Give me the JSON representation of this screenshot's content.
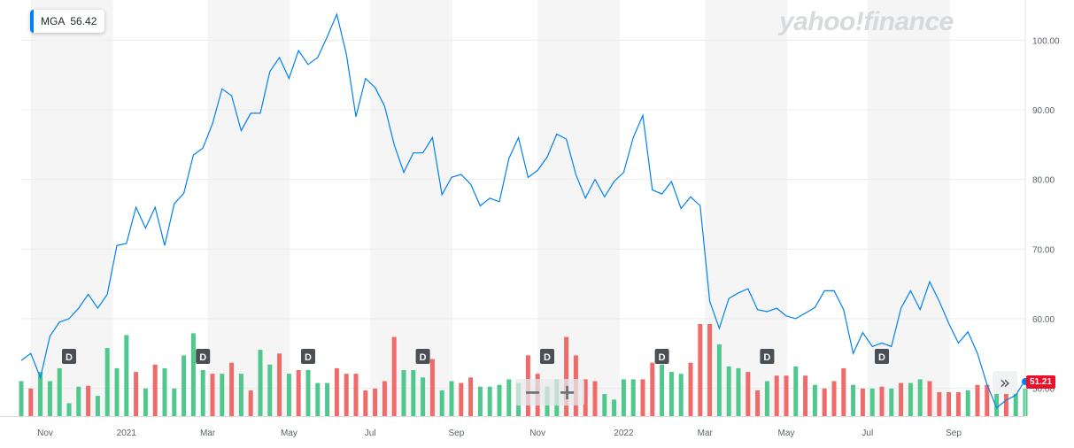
{
  "ticker": {
    "symbol": "MGA",
    "value": "56.42"
  },
  "watermark": "yahoo!finance",
  "last_price_flag": "51.21",
  "controls": {
    "zoom_out": "−",
    "zoom_in": "+",
    "forward": "»"
  },
  "colors": {
    "line": "#0081f2",
    "up": "#50c88d",
    "down": "#f06a6a",
    "flag": "#eb0f29",
    "band": "#f5f5f5"
  },
  "chart_data": {
    "type": "line",
    "ylim": [
      46,
      105
    ],
    "y_ticks": [
      "100.00",
      "90.00",
      "80.00",
      "70.00",
      "60.00",
      "50.00"
    ],
    "x_ticks": [
      {
        "label": "Nov",
        "week": 2.5
      },
      {
        "label": "2021",
        "week": 11
      },
      {
        "label": "Mar",
        "week": 19.5
      },
      {
        "label": "May",
        "week": 28
      },
      {
        "label": "Jul",
        "week": 36.5
      },
      {
        "label": "Sep",
        "week": 45.5
      },
      {
        "label": "Nov",
        "week": 54
      },
      {
        "label": "2022",
        "week": 63
      },
      {
        "label": "Mar",
        "week": 71.5
      },
      {
        "label": "May",
        "week": 80
      },
      {
        "label": "Jul",
        "week": 88.5
      },
      {
        "label": "Sep",
        "week": 97.5
      }
    ],
    "dividend_marker_label": "D",
    "dividend_weeks": [
      5,
      19,
      30,
      42,
      55,
      67,
      78,
      90
    ],
    "price": [
      54,
      55,
      51.5,
      57.5,
      59.5,
      60,
      61.5,
      63.5,
      61.5,
      63.5,
      70.5,
      70.8,
      76,
      73,
      76,
      70.5,
      76.5,
      78,
      83.5,
      84.5,
      88,
      93,
      92,
      87,
      89.5,
      89.5,
      95.5,
      97.5,
      94.5,
      98.5,
      96.5,
      97.5,
      100.5,
      103.7,
      98,
      89,
      94.5,
      93.2,
      90.5,
      85,
      81,
      83.8,
      83.8,
      86,
      77.8,
      80.3,
      80.7,
      79.3,
      76.2,
      77.3,
      76.8,
      83,
      86,
      80.3,
      81.3,
      83.2,
      86.5,
      85.8,
      80.7,
      77.3,
      80,
      77.5,
      79.7,
      81,
      86,
      89.2,
      78.5,
      77.9,
      79.7,
      75.8,
      77.5,
      76.2,
      62.5,
      58.6,
      62.9,
      63.7,
      64.3,
      61.3,
      61,
      61.5,
      60.4,
      60,
      60.8,
      61.6,
      64,
      64,
      61.3,
      55,
      58,
      56,
      56.5,
      56,
      61.5,
      64,
      61.3,
      65.3,
      62.5,
      59.3,
      56.5,
      58.1,
      55,
      50.5,
      47.2,
      48.3,
      49,
      51.2
    ],
    "volume": [
      {
        "h": 0.38,
        "up": true
      },
      {
        "h": 0.3,
        "up": false
      },
      {
        "h": 0.48,
        "up": true
      },
      {
        "h": 0.38,
        "up": true
      },
      {
        "h": 0.52,
        "up": true
      },
      {
        "h": 0.14,
        "up": true
      },
      {
        "h": 0.32,
        "up": true
      },
      {
        "h": 0.33,
        "up": false
      },
      {
        "h": 0.22,
        "up": true
      },
      {
        "h": 0.74,
        "up": true
      },
      {
        "h": 0.52,
        "up": true
      },
      {
        "h": 0.88,
        "up": true
      },
      {
        "h": 0.48,
        "up": false
      },
      {
        "h": 0.3,
        "up": true
      },
      {
        "h": 0.56,
        "up": false
      },
      {
        "h": 0.52,
        "up": true
      },
      {
        "h": 0.3,
        "up": true
      },
      {
        "h": 0.66,
        "up": true
      },
      {
        "h": 0.9,
        "up": true
      },
      {
        "h": 0.5,
        "up": true
      },
      {
        "h": 0.46,
        "up": false
      },
      {
        "h": 0.46,
        "up": true
      },
      {
        "h": 0.58,
        "up": false
      },
      {
        "h": 0.46,
        "up": true
      },
      {
        "h": 0.28,
        "up": false
      },
      {
        "h": 0.72,
        "up": true
      },
      {
        "h": 0.56,
        "up": true
      },
      {
        "h": 0.68,
        "up": false
      },
      {
        "h": 0.46,
        "up": true
      },
      {
        "h": 0.5,
        "up": false
      },
      {
        "h": 0.5,
        "up": true
      },
      {
        "h": 0.36,
        "up": true
      },
      {
        "h": 0.36,
        "up": true
      },
      {
        "h": 0.52,
        "up": false
      },
      {
        "h": 0.46,
        "up": false
      },
      {
        "h": 0.46,
        "up": false
      },
      {
        "h": 0.28,
        "up": false
      },
      {
        "h": 0.3,
        "up": false
      },
      {
        "h": 0.38,
        "up": false
      },
      {
        "h": 0.86,
        "up": false
      },
      {
        "h": 0.5,
        "up": true
      },
      {
        "h": 0.5,
        "up": true
      },
      {
        "h": 0.42,
        "up": true
      },
      {
        "h": 0.62,
        "up": false
      },
      {
        "h": 0.28,
        "up": true
      },
      {
        "h": 0.38,
        "up": true
      },
      {
        "h": 0.36,
        "up": false
      },
      {
        "h": 0.42,
        "up": false
      },
      {
        "h": 0.32,
        "up": true
      },
      {
        "h": 0.32,
        "up": true
      },
      {
        "h": 0.34,
        "up": true
      },
      {
        "h": 0.4,
        "up": true
      },
      {
        "h": 0.36,
        "up": true
      },
      {
        "h": 0.66,
        "up": false
      },
      {
        "h": 0.46,
        "up": false
      },
      {
        "h": 0.32,
        "up": true
      },
      {
        "h": 0.4,
        "up": true
      },
      {
        "h": 0.86,
        "up": false
      },
      {
        "h": 0.66,
        "up": false
      },
      {
        "h": 0.4,
        "up": false
      },
      {
        "h": 0.38,
        "up": false
      },
      {
        "h": 0.24,
        "up": true
      },
      {
        "h": 0.18,
        "up": true
      },
      {
        "h": 0.4,
        "up": true
      },
      {
        "h": 0.4,
        "up": true
      },
      {
        "h": 0.4,
        "up": false
      },
      {
        "h": 0.58,
        "up": false
      },
      {
        "h": 0.56,
        "up": true
      },
      {
        "h": 0.48,
        "up": true
      },
      {
        "h": 0.46,
        "up": true
      },
      {
        "h": 0.58,
        "up": false
      },
      {
        "h": 1.0,
        "up": false
      },
      {
        "h": 1.0,
        "up": false
      },
      {
        "h": 0.78,
        "up": true
      },
      {
        "h": 0.54,
        "up": true
      },
      {
        "h": 0.52,
        "up": true
      },
      {
        "h": 0.48,
        "up": false
      },
      {
        "h": 0.28,
        "up": false
      },
      {
        "h": 0.38,
        "up": true
      },
      {
        "h": 0.44,
        "up": false
      },
      {
        "h": 0.44,
        "up": false
      },
      {
        "h": 0.54,
        "up": true
      },
      {
        "h": 0.44,
        "up": false
      },
      {
        "h": 0.34,
        "up": true
      },
      {
        "h": 0.3,
        "up": false
      },
      {
        "h": 0.38,
        "up": false
      },
      {
        "h": 0.52,
        "up": false
      },
      {
        "h": 0.34,
        "up": true
      },
      {
        "h": 0.3,
        "up": false
      },
      {
        "h": 0.3,
        "up": true
      },
      {
        "h": 0.32,
        "up": false
      },
      {
        "h": 0.3,
        "up": true
      },
      {
        "h": 0.36,
        "up": false
      },
      {
        "h": 0.36,
        "up": true
      },
      {
        "h": 0.4,
        "up": true
      },
      {
        "h": 0.38,
        "up": false
      },
      {
        "h": 0.26,
        "up": false
      },
      {
        "h": 0.26,
        "up": false
      },
      {
        "h": 0.26,
        "up": false
      },
      {
        "h": 0.28,
        "up": true
      },
      {
        "h": 0.34,
        "up": false
      },
      {
        "h": 0.34,
        "up": false
      },
      {
        "h": 0.3,
        "up": true
      },
      {
        "h": 0.3,
        "up": false
      },
      {
        "h": 0.28,
        "up": true
      },
      {
        "h": 0.3,
        "up": true
      }
    ]
  }
}
